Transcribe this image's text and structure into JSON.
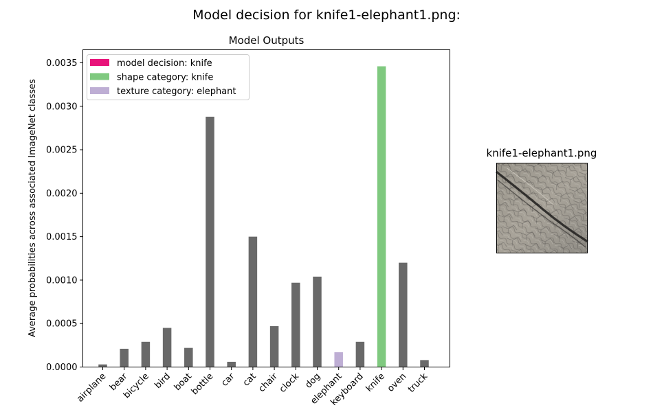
{
  "figure": {
    "suptitle": "Model decision for knife1-elephant1.png:"
  },
  "chart_data": {
    "type": "bar",
    "title": "Model Outputs",
    "xlabel": "",
    "ylabel": "Average probabilities across associated ImageNet classes",
    "ylim": [
      0,
      0.00365
    ],
    "yticks": [
      {
        "value": 0,
        "label": "0.0000"
      },
      {
        "value": 0.0005,
        "label": "0.0005"
      },
      {
        "value": 0.001,
        "label": "0.0010"
      },
      {
        "value": 0.0015,
        "label": "0.0015"
      },
      {
        "value": 0.002,
        "label": "0.0020"
      },
      {
        "value": 0.0025,
        "label": "0.0025"
      },
      {
        "value": 0.003,
        "label": "0.0030"
      },
      {
        "value": 0.0035,
        "label": "0.0035"
      }
    ],
    "categories": [
      "airplane",
      "bear",
      "bicycle",
      "bird",
      "boat",
      "bottle",
      "car",
      "cat",
      "chair",
      "clock",
      "dog",
      "elephant",
      "keyboard",
      "knife",
      "oven",
      "truck"
    ],
    "values": [
      3e-05,
      0.00021,
      0.00029,
      0.00045,
      0.00022,
      0.00288,
      6e-05,
      0.0015,
      0.00047,
      0.00097,
      0.00104,
      0.00017,
      0.00029,
      0.00346,
      0.0012,
      8e-05
    ],
    "bar_roles": [
      "other",
      "other",
      "other",
      "other",
      "other",
      "other",
      "other",
      "other",
      "other",
      "other",
      "other",
      "texture",
      "other",
      "shape",
      "other",
      "other"
    ],
    "colors": {
      "other": "#696969",
      "decision": "#e8137a",
      "shape": "#7fc97f",
      "texture": "#beaed4"
    },
    "legend": {
      "placement": "top-left",
      "entries": [
        {
          "label": "model decision: knife",
          "role": "decision"
        },
        {
          "label": "shape category: knife",
          "role": "shape"
        },
        {
          "label": "texture category: elephant",
          "role": "texture"
        }
      ]
    },
    "grid": false
  },
  "image_panel": {
    "title": "knife1-elephant1.png",
    "description_icon": "texture-image"
  }
}
